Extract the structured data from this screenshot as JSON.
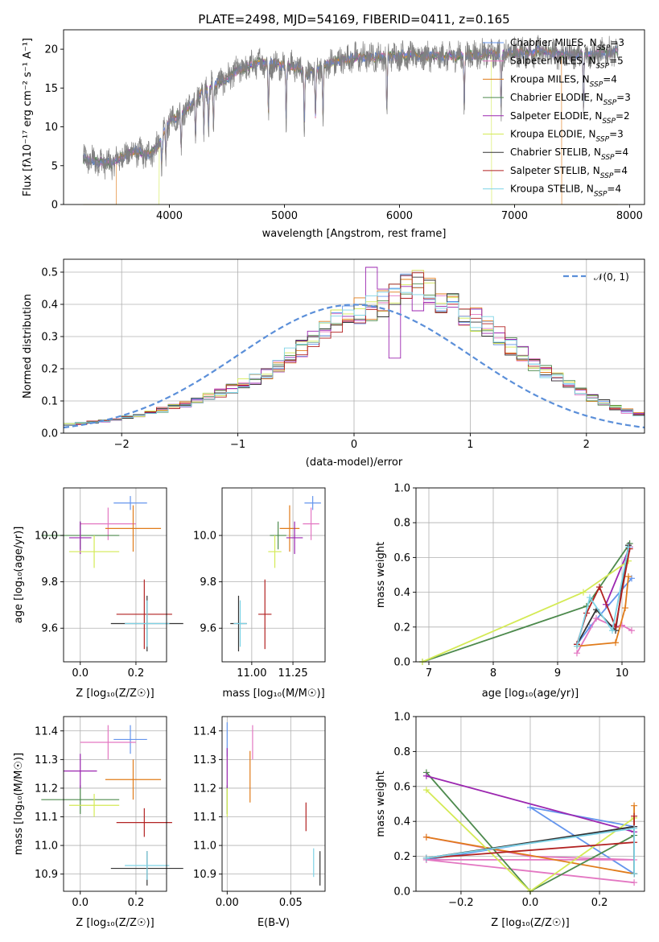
{
  "colors": {
    "Chabrier MILES": "#6495ed",
    "Salpeter MILES": "#e377c2",
    "Kroupa MILES": "#e07b1a",
    "Chabrier ELODIE": "#4d8a4d",
    "Salpeter ELODIE": "#9c27b0",
    "Kroupa ELODIE": "#d4ea55",
    "Chabrier STELIB": "#333333",
    "Salpeter STELIB": "#b22222",
    "Kroupa STELIB": "#7ed3e6"
  },
  "chart_data": [
    {
      "type": "line",
      "title": "PLATE=2498, MJD=54169, FIBERID=0411, z=0.165",
      "xlabel": "wavelength [Angstrom, rest frame]",
      "ylabel": "Flux [fλ10⁻¹⁷ erg cm⁻² s⁻¹ A⁻¹]",
      "xlim": [
        3080,
        8130
      ],
      "ylim": [
        0,
        22.5
      ],
      "xticks": [
        4000,
        5000,
        6000,
        7000,
        8000
      ],
      "yticks": [
        0,
        5,
        10,
        15,
        20
      ],
      "grid": false,
      "legend_position": "top-right",
      "legend": [
        {
          "label": "Chabrier MILES, N",
          "sub": "SSP",
          "suffix": "=3",
          "color": "#6495ed"
        },
        {
          "label": "Salpeter MILES, N",
          "sub": "SSP",
          "suffix": "=5",
          "color": "#e377c2"
        },
        {
          "label": "Kroupa MILES, N",
          "sub": "SSP",
          "suffix": "=4",
          "color": "#e07b1a"
        },
        {
          "label": "Chabrier ELODIE, N",
          "sub": "SSP",
          "suffix": "=3",
          "color": "#4d8a4d"
        },
        {
          "label": "Salpeter ELODIE, N",
          "sub": "SSP",
          "suffix": "=2",
          "color": "#9c27b0"
        },
        {
          "label": "Kroupa ELODIE, N",
          "sub": "SSP",
          "suffix": "=3",
          "color": "#d4ea55"
        },
        {
          "label": "Chabrier STELIB, N",
          "sub": "SSP",
          "suffix": "=4",
          "color": "#333333"
        },
        {
          "label": "Salpeter STELIB, N",
          "sub": "SSP",
          "suffix": "=4",
          "color": "#b22222"
        },
        {
          "label": "Kroupa STELIB, N",
          "sub": "SSP",
          "suffix": "=4",
          "color": "#7ed3e6"
        }
      ],
      "spectrum_envelope": {
        "x": [
          3250,
          3400,
          3500,
          3600,
          3700,
          3800,
          3900,
          4000,
          4100,
          4200,
          4300,
          4400,
          4500,
          4600,
          4700,
          4800,
          4900,
          5000,
          5100,
          5200,
          5300,
          5400,
          5500,
          5600,
          5800,
          6000,
          6200,
          6400,
          6600,
          6800,
          7000,
          7200,
          7400,
          7600,
          7800,
          7900
        ],
        "y": [
          5.8,
          5.5,
          5.2,
          6.3,
          6.9,
          6.3,
          7.4,
          10.7,
          11.8,
          12.8,
          14.9,
          15.5,
          16.2,
          17.3,
          17.8,
          18.4,
          18.1,
          18.0,
          17.7,
          16.8,
          17.5,
          18.2,
          18.6,
          18.9,
          19.0,
          19.2,
          19.1,
          19.0,
          19.3,
          19.4,
          19.5,
          19.7,
          19.4,
          19.3,
          19.5,
          19.7
        ]
      },
      "model_edges": [
        {
          "model": "Kroupa MILES",
          "range": [
            3540,
            7410
          ]
        },
        {
          "model": "Kroupa ELODIE",
          "range": [
            3910,
            6800
          ]
        }
      ]
    },
    {
      "type": "line",
      "subtype": "step-histogram",
      "xlabel": "(data-model)/error",
      "ylabel": "Normed distribution",
      "xlim": [
        -2.5,
        2.5
      ],
      "ylim": [
        0,
        0.54
      ],
      "xticks": [
        -2,
        -1,
        0,
        1,
        2
      ],
      "yticks": [
        0.0,
        0.1,
        0.2,
        0.3,
        0.4,
        0.5
      ],
      "grid": true,
      "legend_position": "top-right",
      "reference_curve": {
        "label": "𝒩(0, 1)",
        "color": "#5b8fd9",
        "style": "dashed"
      },
      "bins": {
        "start": -2.5,
        "width": 0.1,
        "count": 50
      },
      "histogram_base": [
        0.027,
        0.03,
        0.034,
        0.038,
        0.043,
        0.05,
        0.056,
        0.063,
        0.072,
        0.082,
        0.09,
        0.1,
        0.112,
        0.125,
        0.14,
        0.155,
        0.168,
        0.185,
        0.21,
        0.24,
        0.262,
        0.29,
        0.318,
        0.345,
        0.37,
        0.38,
        0.39,
        0.405,
        0.44,
        0.47,
        0.46,
        0.445,
        0.42,
        0.395,
        0.375,
        0.355,
        0.33,
        0.3,
        0.272,
        0.245,
        0.215,
        0.19,
        0.17,
        0.15,
        0.13,
        0.11,
        0.095,
        0.08,
        0.068,
        0.058
      ]
    },
    {
      "type": "scatter",
      "subtype": "errorbar",
      "xlabel": "Z [log₁₀(Z/Z☉)]",
      "ylabel": "age  [log₁₀(age/yr)]",
      "xlim": [
        -0.06,
        0.31
      ],
      "ylim": [
        9.455,
        10.205
      ],
      "xticks": [
        0.0,
        0.2
      ],
      "yticks": [
        9.6,
        9.8,
        10.0
      ],
      "grid": true,
      "points": [
        {
          "model": "Chabrier MILES",
          "x": 0.18,
          "y": 10.14,
          "xerr": 0.06,
          "yerr": 0.03
        },
        {
          "model": "Salpeter MILES",
          "x": 0.1,
          "y": 10.05,
          "xerr": 0.1,
          "yerr": 0.07
        },
        {
          "model": "Kroupa MILES",
          "x": 0.19,
          "y": 10.03,
          "xerr": 0.1,
          "yerr": 0.1
        },
        {
          "model": "Chabrier ELODIE",
          "x": 0.0,
          "y": 10.0,
          "xerr": 0.14,
          "yerr": 0.06
        },
        {
          "model": "Salpeter ELODIE",
          "x": 0.0,
          "y": 9.99,
          "xerr": 0.04,
          "yerr": 0.07
        },
        {
          "model": "Kroupa ELODIE",
          "x": 0.05,
          "y": 9.93,
          "xerr": 0.09,
          "yerr": 0.07
        },
        {
          "model": "Chabrier STELIB",
          "x": 0.24,
          "y": 9.62,
          "xerr": 0.13,
          "yerr": 0.12
        },
        {
          "model": "Salpeter STELIB",
          "x": 0.23,
          "y": 9.66,
          "xerr": 0.1,
          "yerr": 0.15
        },
        {
          "model": "Kroupa STELIB",
          "x": 0.24,
          "y": 9.62,
          "xerr": 0.08,
          "yerr": 0.1
        }
      ]
    },
    {
      "type": "scatter",
      "subtype": "errorbar",
      "xlabel": "mass [log₁₀(M/M☉)]",
      "ylabel": "",
      "xlim": [
        10.82,
        11.445
      ],
      "ylim": [
        9.455,
        10.205
      ],
      "xticks": [
        11.0,
        11.25
      ],
      "yticks": [
        9.6,
        9.8,
        10.0
      ],
      "grid": true,
      "points": [
        {
          "model": "Chabrier MILES",
          "x": 11.37,
          "y": 10.14,
          "xerr": 0.05,
          "yerr": 0.03
        },
        {
          "model": "Salpeter MILES",
          "x": 11.36,
          "y": 10.05,
          "xerr": 0.05,
          "yerr": 0.07
        },
        {
          "model": "Kroupa MILES",
          "x": 11.23,
          "y": 10.03,
          "xerr": 0.06,
          "yerr": 0.1
        },
        {
          "model": "Chabrier ELODIE",
          "x": 11.16,
          "y": 10.0,
          "xerr": 0.05,
          "yerr": 0.06
        },
        {
          "model": "Salpeter ELODIE",
          "x": 11.26,
          "y": 9.99,
          "xerr": 0.05,
          "yerr": 0.07
        },
        {
          "model": "Kroupa ELODIE",
          "x": 11.14,
          "y": 9.93,
          "xerr": 0.04,
          "yerr": 0.07
        },
        {
          "model": "Chabrier STELIB",
          "x": 10.92,
          "y": 9.62,
          "xerr": 0.05,
          "yerr": 0.12
        },
        {
          "model": "Salpeter STELIB",
          "x": 11.08,
          "y": 9.66,
          "xerr": 0.04,
          "yerr": 0.15
        },
        {
          "model": "Kroupa STELIB",
          "x": 10.93,
          "y": 9.62,
          "xerr": 0.04,
          "yerr": 0.1
        }
      ]
    },
    {
      "type": "line",
      "xlabel": "age  [log₁₀(age/yr)]",
      "ylabel": "mass weight",
      "xlim": [
        6.8,
        10.35
      ],
      "ylim": [
        0,
        1
      ],
      "xticks": [
        7,
        8,
        9,
        10
      ],
      "yticks": [
        0.0,
        0.2,
        0.4,
        0.6,
        0.8,
        1.0
      ],
      "grid": true,
      "series": [
        {
          "name": "Chabrier MILES",
          "x": [
            9.3,
            9.5,
            10.15
          ],
          "y": [
            0.1,
            0.2,
            0.48
          ]
        },
        {
          "name": "Salpeter MILES",
          "x": [
            9.3,
            9.6,
            9.9,
            10.0,
            10.15
          ],
          "y": [
            0.05,
            0.25,
            0.2,
            0.21,
            0.18
          ]
        },
        {
          "name": "Kroupa MILES",
          "x": [
            9.3,
            9.9,
            10.05,
            10.1
          ],
          "y": [
            0.09,
            0.11,
            0.31,
            0.49
          ]
        },
        {
          "name": "Chabrier ELODIE",
          "x": [
            6.9,
            9.45,
            10.12
          ],
          "y": [
            0.0,
            0.32,
            0.68
          ]
        },
        {
          "name": "Salpeter ELODIE",
          "x": [
            9.75,
            10.12
          ],
          "y": [
            0.33,
            0.66
          ]
        },
        {
          "name": "Kroupa ELODIE",
          "x": [
            6.9,
            9.4,
            10.1
          ],
          "y": [
            0.0,
            0.4,
            0.58
          ]
        },
        {
          "name": "Chabrier STELIB",
          "x": [
            9.3,
            9.6,
            9.9,
            10.1
          ],
          "y": [
            0.1,
            0.3,
            0.18,
            0.67
          ]
        },
        {
          "name": "Salpeter STELIB",
          "x": [
            9.3,
            9.45,
            9.65,
            9.9,
            10.12
          ],
          "y": [
            0.1,
            0.28,
            0.43,
            0.2,
            0.65
          ]
        },
        {
          "name": "Kroupa STELIB",
          "x": [
            9.3,
            9.5,
            9.85,
            10.1
          ],
          "y": [
            0.09,
            0.37,
            0.18,
            0.66
          ]
        }
      ]
    },
    {
      "type": "scatter",
      "subtype": "errorbar",
      "xlabel": "Z [log₁₀(Z/Z☉)]",
      "ylabel": "mass [log₁₀(M/M☉)]",
      "xlim": [
        -0.06,
        0.31
      ],
      "ylim": [
        10.84,
        11.45
      ],
      "xticks": [
        0.0,
        0.2
      ],
      "yticks": [
        10.9,
        11.0,
        11.1,
        11.2,
        11.3,
        11.4
      ],
      "grid": true,
      "points": [
        {
          "model": "Chabrier MILES",
          "x": 0.18,
          "y": 11.37,
          "xerr": 0.06,
          "yerr": 0.05
        },
        {
          "model": "Salpeter MILES",
          "x": 0.1,
          "y": 11.36,
          "xerr": 0.1,
          "yerr": 0.06
        },
        {
          "model": "Kroupa MILES",
          "x": 0.19,
          "y": 11.23,
          "xerr": 0.1,
          "yerr": 0.07
        },
        {
          "model": "Chabrier ELODIE",
          "x": 0.0,
          "y": 11.16,
          "xerr": 0.14,
          "yerr": 0.05
        },
        {
          "model": "Salpeter ELODIE",
          "x": 0.0,
          "y": 11.26,
          "xerr": 0.06,
          "yerr": 0.06
        },
        {
          "model": "Kroupa ELODIE",
          "x": 0.05,
          "y": 11.14,
          "xerr": 0.09,
          "yerr": 0.04
        },
        {
          "model": "Chabrier STELIB",
          "x": 0.24,
          "y": 10.92,
          "xerr": 0.13,
          "yerr": 0.06
        },
        {
          "model": "Salpeter STELIB",
          "x": 0.23,
          "y": 11.08,
          "xerr": 0.1,
          "yerr": 0.05
        },
        {
          "model": "Kroupa STELIB",
          "x": 0.24,
          "y": 10.93,
          "xerr": 0.08,
          "yerr": 0.05
        }
      ]
    },
    {
      "type": "scatter",
      "subtype": "errorbar",
      "xlabel": "E(B-V)",
      "ylabel": "",
      "xlim": [
        -0.004,
        0.077
      ],
      "ylim": [
        10.84,
        11.45
      ],
      "xticks": [
        0.0,
        0.05
      ],
      "yticks": [
        10.9,
        11.0,
        11.1,
        11.2,
        11.3,
        11.4
      ],
      "grid": true,
      "points": [
        {
          "model": "Chabrier MILES",
          "x": 0.0,
          "y": 11.37,
          "xerr": 0,
          "yerr": 0.06
        },
        {
          "model": "Salpeter MILES",
          "x": 0.02,
          "y": 11.36,
          "xerr": 0,
          "yerr": 0.06
        },
        {
          "model": "Kroupa MILES",
          "x": 0.018,
          "y": 11.24,
          "xerr": 0,
          "yerr": 0.09
        },
        {
          "model": "Chabrier ELODIE",
          "x": 0.0,
          "y": 11.16,
          "xerr": 0,
          "yerr": 0.05
        },
        {
          "model": "Salpeter ELODIE",
          "x": 0.0,
          "y": 11.27,
          "xerr": 0,
          "yerr": 0.07
        },
        {
          "model": "Kroupa ELODIE",
          "x": 0.0,
          "y": 11.15,
          "xerr": 0,
          "yerr": 0.05
        },
        {
          "model": "Chabrier STELIB",
          "x": 0.073,
          "y": 10.92,
          "xerr": 0,
          "yerr": 0.06
        },
        {
          "model": "Salpeter STELIB",
          "x": 0.062,
          "y": 11.1,
          "xerr": 0,
          "yerr": 0.05
        },
        {
          "model": "Kroupa STELIB",
          "x": 0.068,
          "y": 10.94,
          "xerr": 0,
          "yerr": 0.05
        }
      ]
    },
    {
      "type": "line",
      "xlabel": "Z [log₁₀(Z/Z☉)]",
      "ylabel": "mass weight",
      "xlim": [
        -0.33,
        0.33
      ],
      "ylim": [
        0,
        1
      ],
      "xticks": [
        -0.2,
        0.0,
        0.2
      ],
      "yticks": [
        0.0,
        0.2,
        0.4,
        0.6,
        0.8,
        1.0
      ],
      "grid": true,
      "series": [
        {
          "name": "Chabrier MILES",
          "x": [
            -0.3,
            0.3,
            0.0,
            0.3
          ],
          "y": [
            0.18,
            0.37,
            0.48,
            0.1
          ]
        },
        {
          "name": "Salpeter MILES",
          "x": [
            -0.3,
            0.0,
            0.3,
            -0.3,
            0.3
          ],
          "y": [
            0.31,
            0.2,
            0.18,
            0.18,
            0.05
          ]
        },
        {
          "name": "Kroupa MILES",
          "x": [
            -0.3,
            0.3,
            0.3
          ],
          "y": [
            0.31,
            0.1,
            0.49
          ]
        },
        {
          "name": "Chabrier ELODIE",
          "x": [
            -0.3,
            0.0,
            0.3
          ],
          "y": [
            0.68,
            0.0,
            0.32
          ]
        },
        {
          "name": "Salpeter ELODIE",
          "x": [
            -0.3,
            0.3
          ],
          "y": [
            0.66,
            0.34
          ]
        },
        {
          "name": "Kroupa ELODIE",
          "x": [
            -0.3,
            0.0,
            0.3
          ],
          "y": [
            0.58,
            0.0,
            0.42
          ]
        },
        {
          "name": "Chabrier STELIB",
          "x": [
            -0.3,
            0.3,
            0.3
          ],
          "y": [
            0.19,
            0.37,
            0.1
          ]
        },
        {
          "name": "Salpeter STELIB",
          "x": [
            -0.3,
            0.3,
            0.3
          ],
          "y": [
            0.19,
            0.28,
            0.43
          ]
        },
        {
          "name": "Kroupa STELIB",
          "x": [
            -0.3,
            0.3,
            0.3
          ],
          "y": [
            0.19,
            0.36,
            0.1
          ]
        }
      ]
    }
  ]
}
